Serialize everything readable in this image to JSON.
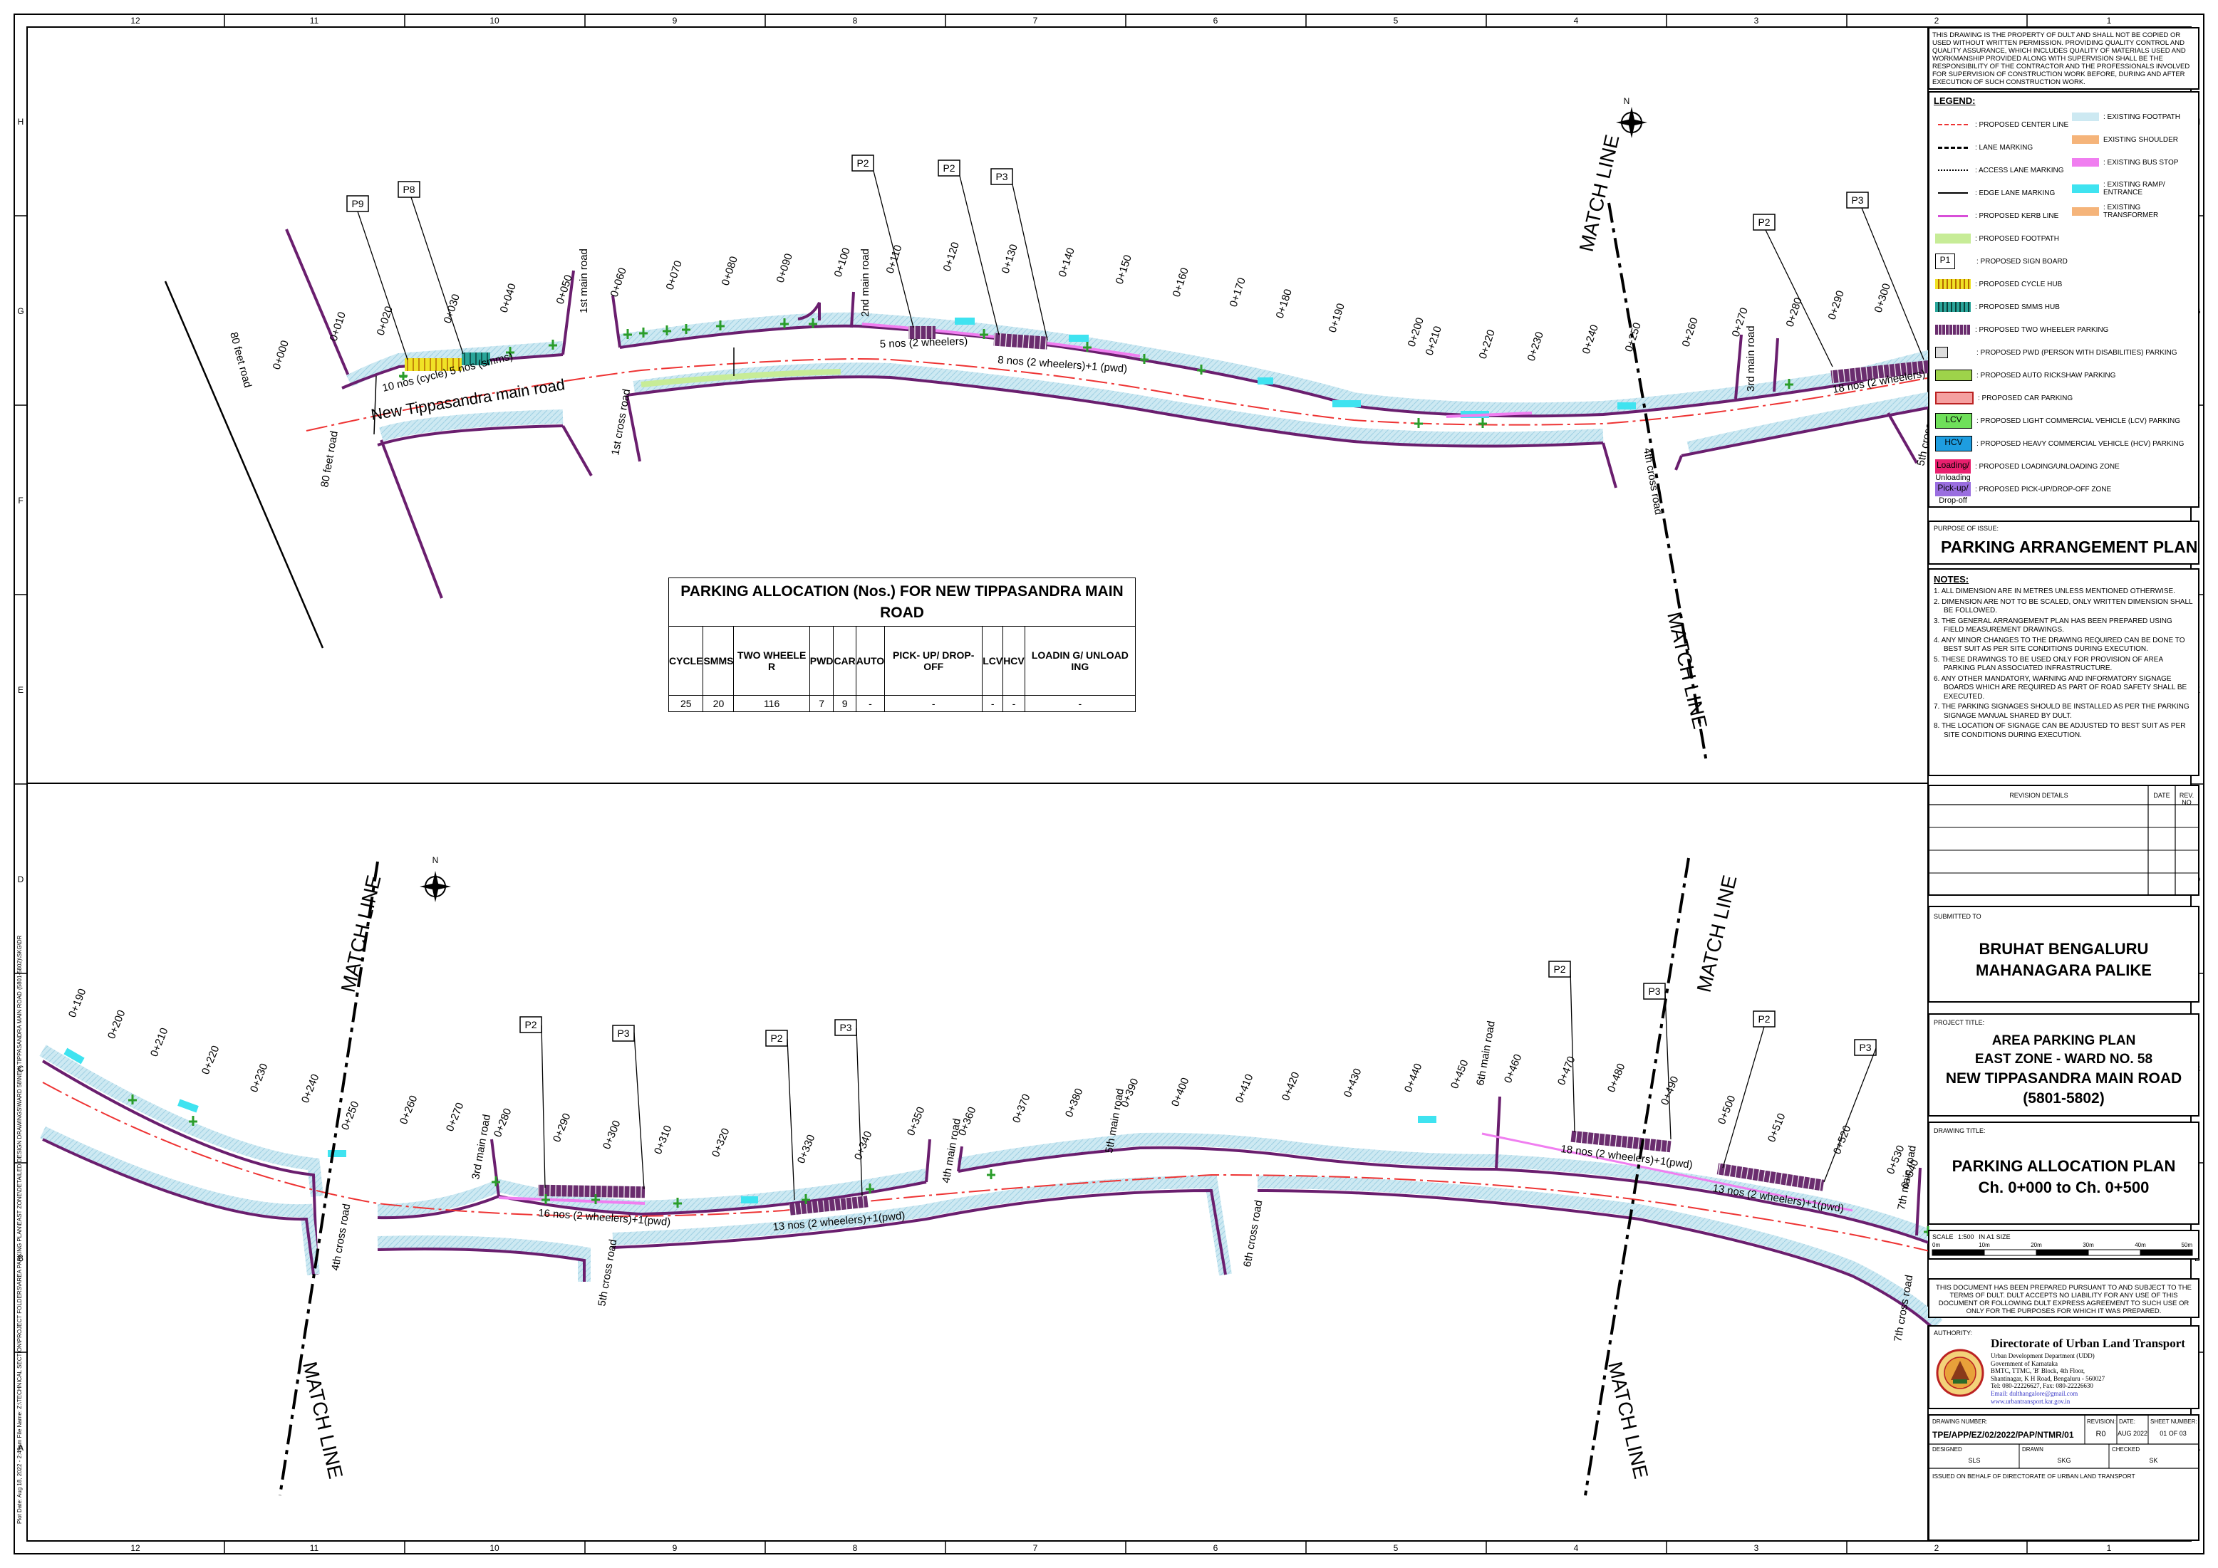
{
  "grid": {
    "columns": [
      "12",
      "11",
      "10",
      "9",
      "8",
      "7",
      "6",
      "5",
      "4",
      "3",
      "2",
      "1"
    ],
    "rows": [
      "H",
      "G",
      "F",
      "E",
      "D",
      "C",
      "B",
      "A"
    ]
  },
  "disclaimer_top": "THIS DRAWING IS THE PROPERTY OF DULT AND SHALL NOT BE COPIED OR USED WITHOUT WRITTEN PERMISSION. PROVIDING QUALITY CONTROL AND QUALITY ASSURANCE, WHICH INCLUDES QUALITY OF MATERIALS USED AND WORKMANSHIP PROVIDED ALONG WITH SUPERVISION SHALL BE THE RESPONSIBILITY OF THE CONTRACTOR AND THE PROFESSIONALS INVOLVED FOR SUPERVISION OF CONSTRUCTION WORK BEFORE, DURING AND AFTER EXECUTION OF SUCH CONSTRUCTION WORK.",
  "legend": {
    "title": "LEGEND:",
    "left": [
      {
        "label": ": PROPOSED CENTER LINE",
        "icon": "center-line"
      },
      {
        "label": ": LANE MARKING",
        "icon": "lane-marking"
      },
      {
        "label": ": ACCESS LANE MARKING",
        "icon": "access-lane"
      },
      {
        "label": ": EDGE LANE MARKING",
        "icon": "edge-lane"
      },
      {
        "label": ": PROPOSED KERB LINE",
        "icon": "kerb-line"
      },
      {
        "label": ": PROPOSED FOOTPATH",
        "icon": "footpath"
      },
      {
        "label": ": PROPOSED SIGN BOARD",
        "icon": "sign-board",
        "text": "P1"
      },
      {
        "label": ": PROPOSED CYCLE HUB",
        "icon": "cycle-hub"
      },
      {
        "label": ": PROPOSED SMMS HUB",
        "icon": "smms-hub"
      },
      {
        "label": ": PROPOSED TWO WHEELER PARKING",
        "icon": "two-wheeler"
      },
      {
        "label": ": PROPOSED PWD (PERSON WITH DISABILITIES) PARKING",
        "icon": "pwd"
      },
      {
        "label": ": PROPOSED AUTO RICKSHAW PARKING",
        "icon": "auto"
      },
      {
        "label": ": PROPOSED CAR PARKING",
        "icon": "car"
      },
      {
        "label": ": PROPOSED LIGHT COMMERCIAL VEHICLE (LCV) PARKING",
        "icon": "lcv",
        "text": "LCV"
      },
      {
        "label": ": PROPOSED HEAVY COMMERCIAL VEHICLE (HCV) PARKING",
        "icon": "hcv",
        "text": "HCV"
      },
      {
        "label": ": PROPOSED LOADING/UNLOADING ZONE",
        "icon": "loading",
        "text": "Loading/",
        "text2": "Unloading"
      },
      {
        "label": ": PROPOSED PICK-UP/DROP-OFF ZONE",
        "icon": "pickup",
        "text": "Pick-up/",
        "text2": "Drop-off"
      }
    ],
    "right": [
      {
        "label": ": EXISTING FOOTPATH",
        "color": "#cde9f2"
      },
      {
        "label": "EXISTING SHOULDER",
        "color": "#f5b47a"
      },
      {
        "label": ": EXISTING BUS STOP",
        "color": "#f07ef0"
      },
      {
        "label": ": EXISTING RAMP/ ENTRANCE",
        "color": "#3fe3f0"
      },
      {
        "label": ": EXISTING TRANSFORMER",
        "color": "#f5b47a"
      }
    ]
  },
  "purpose": {
    "label": "PURPOSE OF ISSUE:",
    "title": "PARKING ARRANGEMENT PLAN"
  },
  "notes": {
    "title": "NOTES:",
    "items": [
      "1.  ALL DIMENSION ARE IN METRES UNLESS MENTIONED OTHERWISE.",
      "2.  DIMENSION ARE NOT TO BE SCALED, ONLY WRITTEN DIMENSION SHALL BE FOLLOWED.",
      "3.  THE GENERAL ARRANGEMENT PLAN HAS BEEN PREPARED USING FIELD MEASUREMENT DRAWINGS.",
      "4.  ANY MINOR CHANGES TO THE DRAWING REQUIRED CAN BE DONE TO BEST SUIT AS PER SITE CONDITIONS DURING EXECUTION.",
      "5.  THESE DRAWINGS TO BE USED ONLY FOR PROVISION OF AREA PARKING PLAN ASSOCIATED INFRASTRUCTURE.",
      "6.  ANY OTHER MANDATORY, WARNING AND INFORMATORY SIGNAGE BOARDS WHICH ARE REQUIRED AS PART OF ROAD SAFETY SHALL BE EXECUTED.",
      "7.  THE PARKING SIGNAGES SHOULD BE INSTALLED AS PER THE PARKING SIGNAGE MANUAL SHARED BY DULT.",
      "8.  THE LOCATION OF SIGNAGE CAN BE ADJUSTED TO BEST SUIT AS PER SITE CONDITIONS DURING EXECUTION."
    ]
  },
  "revision": {
    "details": "REVISION DETAILS",
    "date": "DATE",
    "rev": "REV. NO"
  },
  "submitted": {
    "label": "SUBMITTED TO",
    "line1": "BRUHAT BENGALURU",
    "line2": "MAHANAGARA PALIKE"
  },
  "project": {
    "label": "PROJECT TITLE:",
    "line1": "AREA PARKING PLAN",
    "line2": "EAST ZONE - WARD NO. 58",
    "line3": "NEW TIPPASANDRA MAIN ROAD",
    "line4": "(5801-5802)"
  },
  "drawing_title": {
    "label": "DRAWING TITLE:",
    "line1": "PARKING ALLOCATION PLAN",
    "line2": "Ch. 0+000 to Ch. 0+500"
  },
  "scale": {
    "label": "SCALE",
    "value": "1:500",
    "size": "IN A1 SIZE",
    "ticks": [
      "0m",
      "10m",
      "20m",
      "30m",
      "40m",
      "50m"
    ]
  },
  "disclaimer_bottom": "THIS DOCUMENT HAS BEEN PREPARED PURSUANT TO AND SUBJECT TO THE TERMS OF DULT. DULT ACCEPTS NO LIABILITY FOR ANY USE OF THIS DOCUMENT OR FOLLOWING DULT EXPRESS AGREEMENT TO SUCH USE OR ONLY FOR THE PURPOSES FOR WHICH IT WAS PREPARED.",
  "authority": {
    "label": "AUTHORITY:",
    "name": "Directorate of Urban Land Transport",
    "lines": [
      "Urban Development Department (UDD)",
      "Government of Karnataka",
      "BMTC, TTMC, 'B' Block, 4th Floor,",
      "Shantinagar, K H Road, Bengaluru - 560027",
      "Tel: 080-22226627, Fax: 080-22226630"
    ],
    "email": "Email: dulthangalore@gmail.com",
    "web": "www.urbantransport.kar.gov.in"
  },
  "drawing_meta": {
    "number_label": "DRAWING NUMBER:",
    "number": "TPE/APP/EZ/02/2022/PAP/NTMR/01",
    "revision_label": "REVISION:",
    "revision": "R0",
    "date_label": "DATE:",
    "date": "AUG 2022",
    "sheet_label": "SHEET NUMBER:",
    "sheet": "01 OF 03",
    "designed_label": "DESIGNED",
    "designed": "SLS",
    "drawn_label": "DRAWN",
    "drawn": "SKG",
    "checked_label": "CHECKED",
    "checked": "SK",
    "issued": "ISSUED ON BEHALF OF DIRECTORATE OF URBAN LAND TRANSPORT"
  },
  "alloc": {
    "title": "PARKING ALLOCATION (Nos.) FOR NEW TIPPASANDRA MAIN ROAD",
    "headers": [
      "CYCLE",
      "SMMS",
      "TWO WHEELE R",
      "PWD",
      "CAR",
      "AUTO",
      "PICK- UP/ DROP- OFF",
      "LCV",
      "HCV",
      "LOADIN G/ UNLOAD ING"
    ],
    "values": [
      "25",
      "20",
      "116",
      "7",
      "9",
      "-",
      "-",
      "-",
      "-",
      "-"
    ]
  },
  "top_map": {
    "road_name": "New Tippasandra main road",
    "chainages": [
      "0+000",
      "0+010",
      "0+020",
      "0+030",
      "0+040",
      "0+050",
      "0+060",
      "0+070",
      "0+080",
      "0+090",
      "0+100",
      "0+110",
      "0+120",
      "0+130",
      "0+140",
      "0+150",
      "0+160",
      "0+170",
      "0+180",
      "0+190",
      "0+200",
      "0+210",
      "0+220",
      "0+230",
      "0+240",
      "0+250",
      "0+260",
      "0+270",
      "0+280",
      "0+290",
      "0+300"
    ],
    "streets": [
      "80 feet road",
      "80 feet road",
      "1st main road",
      "1st cross road",
      "2nd main road",
      "3rd main road",
      "4th cross road",
      "5th cross road"
    ],
    "signs": [
      "P9",
      "P8",
      "P2",
      "P2",
      "P3",
      "P2",
      "P3"
    ],
    "parking_labels": [
      "10 nos (cycle) 5 nos (smms)",
      "5 nos (2 wheelers)",
      "8 nos (2 wheelers)+1 (pwd)",
      "18 nos (2 wheelers)"
    ],
    "match_line": "MATCH LINE"
  },
  "bottom_map": {
    "chainages": [
      "0+190",
      "0+200",
      "0+210",
      "0+220",
      "0+230",
      "0+240",
      "0+250",
      "0+260",
      "0+270",
      "0+280",
      "0+290",
      "0+300",
      "0+310",
      "0+320",
      "0+330",
      "0+340",
      "0+350",
      "0+360",
      "0+370",
      "0+380",
      "0+390",
      "0+400",
      "0+410",
      "0+420",
      "0+430",
      "0+440",
      "0+450",
      "0+460",
      "0+470",
      "0+480",
      "0+490",
      "0+500",
      "0+510",
      "0+520",
      "0+530",
      "0+540"
    ],
    "streets": [
      "3rd main road",
      "4th cross road",
      "5th cross road",
      "4th main road",
      "5th main road",
      "6th cross road",
      "6th main road",
      "7th main road",
      "7th cross road"
    ],
    "signs": [
      "P2",
      "P3",
      "P2",
      "P3",
      "P2",
      "P3",
      "P2",
      "P3"
    ],
    "parking_labels": [
      "16 nos (2 wheelers)+1(pwd)",
      "13 nos (2 wheelers)+1(pwd)",
      "18 nos (2 wheelers)+1(pwd)",
      "13 nos (2 wheelers)+1(pwd)"
    ],
    "match_line": "MATCH LINE"
  },
  "north": "N",
  "side_text": "Plot Date: Aug 18, 2022 - 2:49pm  File Name: Z:\\TECHNICAL SECTION\\PROJECT FOLDERS\\AREA PARKING PLAN\\EAST ZONE\\DETAILED DESIGN DRAWINGS\\WARD 58\\NEW TIPPASANDRA MAIN ROAD (5801-5802)\\SKG\\DR"
}
